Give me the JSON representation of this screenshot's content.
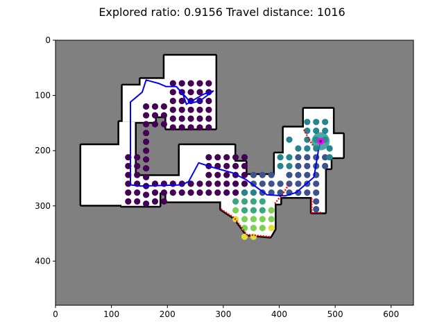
{
  "chart_data": {
    "type": "scatter",
    "title": "Explored ratio: 0.9156  Travel distance: 1016",
    "xlabel": "",
    "ylabel": "",
    "xlim": [
      0,
      640
    ],
    "ylim": [
      480,
      0
    ],
    "x_ticks": [
      0,
      100,
      200,
      300,
      400,
      500,
      600
    ],
    "y_ticks": [
      0,
      100,
      200,
      300,
      400
    ],
    "grid": false,
    "colors": {
      "unknown": "#808080",
      "free": "#ffffff",
      "wall": "#000000",
      "path": "#0000ff",
      "frontier": "#ff0000",
      "robot": "#ff00ff",
      "robot_halo": "#21918c"
    },
    "colormap": "viridis",
    "free_regions": [
      [
        [
          200,
          30
        ],
        [
          262,
          30
        ],
        [
          262,
          70
        ],
        [
          160,
          70
        ],
        [
          160,
          82
        ]
      ],
      [
        [
          110,
          82
        ],
        [
          262,
          82
        ],
        [
          262,
          134
        ],
        [
          200,
          134
        ],
        [
          200,
          82
        ]
      ],
      [
        [
          60,
          190
        ],
        [
          110,
          190
        ],
        [
          110,
          246
        ],
        [
          222,
          246
        ],
        [
          222,
          290
        ],
        [
          60,
          290
        ]
      ],
      [
        [
          110,
          82
        ],
        [
          140,
          82
        ],
        [
          140,
          290
        ],
        [
          110,
          290
        ]
      ],
      [
        [
          110,
          246
        ],
        [
          240,
          246
        ],
        [
          240,
          290
        ],
        [
          110,
          290
        ]
      ],
      [
        [
          222,
          190
        ],
        [
          340,
          190
        ],
        [
          340,
          244
        ],
        [
          390,
          244
        ],
        [
          390,
          290
        ],
        [
          222,
          290
        ]
      ],
      [
        [
          390,
          200
        ],
        [
          480,
          200
        ],
        [
          480,
          290
        ],
        [
          390,
          290
        ]
      ],
      [
        [
          410,
          126
        ],
        [
          510,
          126
        ],
        [
          510,
          300
        ],
        [
          410,
          300
        ]
      ]
    ],
    "free_polygons": [
      [
        [
          195,
          28
        ],
        [
          286,
          28
        ],
        [
          286,
          160
        ],
        [
          198,
          160
        ],
        [
          198,
          138
        ],
        [
          178,
          138
        ],
        [
          178,
          148
        ],
        [
          120,
          148
        ],
        [
          120,
          82
        ],
        [
          152,
          82
        ],
        [
          152,
          70
        ],
        [
          195,
          70
        ]
      ],
      [
        [
          46,
          190
        ],
        [
          114,
          190
        ],
        [
          114,
          148
        ],
        [
          142,
          148
        ],
        [
          142,
          246
        ],
        [
          222,
          246
        ],
        [
          222,
          190
        ],
        [
          320,
          190
        ],
        [
          320,
          220
        ],
        [
          340,
          220
        ],
        [
          340,
          244
        ],
        [
          392,
          244
        ],
        [
          392,
          205
        ],
        [
          408,
          205
        ],
        [
          408,
          158
        ],
        [
          444,
          158
        ],
        [
          444,
          124
        ],
        [
          496,
          124
        ],
        [
          496,
          170
        ],
        [
          514,
          170
        ],
        [
          514,
          212
        ],
        [
          492,
          212
        ],
        [
          492,
          232
        ],
        [
          482,
          232
        ],
        [
          482,
          312
        ],
        [
          458,
          312
        ],
        [
          458,
          284
        ],
        [
          402,
          284
        ],
        [
          402,
          296
        ],
        [
          392,
          296
        ],
        [
          392,
          342
        ],
        [
          384,
          356
        ],
        [
          342,
          352
        ],
        [
          320,
          322
        ],
        [
          296,
          306
        ],
        [
          296,
          292
        ],
        [
          198,
          292
        ],
        [
          198,
          276
        ],
        [
          186,
          276
        ],
        [
          186,
          300
        ],
        [
          118,
          300
        ],
        [
          118,
          298
        ],
        [
          46,
          298
        ]
      ]
    ],
    "series": [
      {
        "points": [
          [
            210,
            78
          ],
          [
            226,
            78
          ],
          [
            242,
            78
          ],
          [
            258,
            78
          ],
          [
            274,
            78
          ],
          [
            210,
            94
          ],
          [
            226,
            94
          ],
          [
            242,
            94
          ],
          [
            258,
            94
          ],
          [
            274,
            94
          ],
          [
            210,
            110
          ],
          [
            226,
            110
          ],
          [
            242,
            110
          ],
          [
            258,
            110
          ],
          [
            274,
            110
          ],
          [
            162,
            120
          ],
          [
            178,
            120
          ],
          [
            194,
            120
          ],
          [
            210,
            126
          ],
          [
            226,
            126
          ],
          [
            242,
            126
          ],
          [
            258,
            126
          ],
          [
            274,
            126
          ],
          [
            162,
            136
          ],
          [
            178,
            136
          ],
          [
            194,
            136
          ],
          [
            210,
            142
          ],
          [
            226,
            142
          ],
          [
            242,
            142
          ],
          [
            258,
            142
          ],
          [
            274,
            142
          ],
          [
            210,
            158
          ],
          [
            226,
            158
          ],
          [
            242,
            158
          ],
          [
            258,
            158
          ],
          [
            274,
            158
          ],
          [
            162,
            152
          ],
          [
            178,
            152
          ],
          [
            194,
            152
          ],
          [
            162,
            168
          ],
          [
            162,
            184
          ],
          [
            162,
            200
          ],
          [
            162,
            216
          ],
          [
            162,
            232
          ],
          [
            162,
            248
          ],
          [
            162,
            264
          ],
          [
            162,
            280
          ],
          [
            162,
            296
          ],
          [
            130,
            212
          ],
          [
            146,
            212
          ],
          [
            130,
            228
          ],
          [
            146,
            228
          ],
          [
            130,
            244
          ],
          [
            146,
            244
          ],
          [
            130,
            260
          ],
          [
            146,
            260
          ],
          [
            130,
            276
          ],
          [
            146,
            276
          ],
          [
            130,
            292
          ],
          [
            146,
            292
          ],
          [
            178,
            260
          ],
          [
            194,
            260
          ],
          [
            210,
            260
          ],
          [
            226,
            260
          ],
          [
            242,
            260
          ],
          [
            258,
            260
          ],
          [
            178,
            276
          ],
          [
            194,
            276
          ],
          [
            210,
            276
          ],
          [
            226,
            276
          ],
          [
            242,
            276
          ],
          [
            258,
            276
          ],
          [
            274,
            212
          ],
          [
            290,
            212
          ],
          [
            306,
            212
          ],
          [
            322,
            212
          ],
          [
            338,
            212
          ],
          [
            274,
            228
          ],
          [
            290,
            228
          ],
          [
            306,
            228
          ],
          [
            322,
            228
          ],
          [
            338,
            228
          ],
          [
            274,
            244
          ],
          [
            290,
            244
          ],
          [
            306,
            244
          ],
          [
            322,
            244
          ],
          [
            338,
            244
          ],
          [
            274,
            260
          ],
          [
            290,
            260
          ],
          [
            306,
            260
          ],
          [
            322,
            260
          ],
          [
            338,
            260
          ],
          [
            274,
            276
          ],
          [
            290,
            276
          ],
          [
            306,
            276
          ],
          [
            322,
            276
          ],
          [
            338,
            276
          ],
          [
            178,
            292
          ],
          [
            194,
            292
          ]
        ],
        "level": 0.0
      },
      {
        "points": [
          [
            354,
            260
          ],
          [
            370,
            260
          ],
          [
            386,
            260
          ],
          [
            402,
            260
          ],
          [
            354,
            244
          ],
          [
            370,
            244
          ],
          [
            386,
            244
          ],
          [
            434,
            212
          ],
          [
            450,
            212
          ],
          [
            466,
            212
          ],
          [
            482,
            212
          ],
          [
            434,
            228
          ],
          [
            450,
            228
          ],
          [
            466,
            228
          ],
          [
            482,
            228
          ],
          [
            418,
            244
          ],
          [
            434,
            244
          ],
          [
            450,
            244
          ],
          [
            466,
            244
          ],
          [
            418,
            260
          ],
          [
            434,
            260
          ],
          [
            450,
            260
          ],
          [
            466,
            260
          ],
          [
            418,
            276
          ],
          [
            434,
            276
          ],
          [
            450,
            276
          ],
          [
            466,
            276
          ],
          [
            402,
            276
          ],
          [
            386,
            276
          ],
          [
            370,
            276
          ],
          [
            466,
            292
          ],
          [
            466,
            306
          ]
        ],
        "level": 0.25
      },
      {
        "points": [
          [
            434,
            196
          ],
          [
            450,
            196
          ],
          [
            466,
            196
          ],
          [
            418,
            180
          ],
          [
            450,
            180
          ],
          [
            466,
            180
          ],
          [
            482,
            180
          ],
          [
            450,
            164
          ],
          [
            466,
            164
          ],
          [
            482,
            164
          ],
          [
            482,
            148
          ],
          [
            466,
            148
          ],
          [
            450,
            148
          ],
          [
            490,
            196
          ],
          [
            490,
            212
          ],
          [
            402,
            228
          ],
          [
            418,
            228
          ],
          [
            418,
            212
          ],
          [
            402,
            212
          ],
          [
            338,
            276
          ],
          [
            354,
            276
          ]
        ],
        "level": 0.45
      },
      {
        "points": [
          [
            322,
            292
          ],
          [
            338,
            292
          ],
          [
            354,
            292
          ],
          [
            370,
            292
          ],
          [
            338,
            308
          ],
          [
            354,
            308
          ],
          [
            370,
            308
          ]
        ],
        "level": 0.6
      },
      {
        "points": [
          [
            322,
            308
          ],
          [
            338,
            324
          ],
          [
            354,
            324
          ],
          [
            370,
            324
          ],
          [
            338,
            340
          ],
          [
            354,
            340
          ],
          [
            370,
            340
          ],
          [
            386,
            308
          ],
          [
            386,
            324
          ]
        ],
        "level": 0.8
      },
      {
        "points": [
          [
            322,
            324
          ],
          [
            354,
            356
          ],
          [
            338,
            356
          ],
          [
            386,
            340
          ]
        ],
        "level": 0.95
      }
    ],
    "path": [
      [
        474,
        183
      ],
      [
        470,
        200
      ],
      [
        462,
        248
      ],
      [
        430,
        276
      ],
      [
        410,
        282
      ],
      [
        378,
        280
      ],
      [
        340,
        252
      ],
      [
        316,
        240
      ],
      [
        280,
        230
      ],
      [
        256,
        222
      ],
      [
        238,
        256
      ],
      [
        226,
        262
      ],
      [
        152,
        264
      ],
      [
        134,
        262
      ],
      [
        134,
        112
      ],
      [
        155,
        94
      ],
      [
        162,
        72
      ],
      [
        184,
        78
      ],
      [
        198,
        84
      ],
      [
        216,
        84
      ],
      [
        228,
        98
      ],
      [
        234,
        116
      ],
      [
        264,
        98
      ],
      [
        282,
        92
      ],
      [
        258,
        110
      ],
      [
        242,
        114
      ],
      [
        234,
        104
      ],
      [
        216,
        84
      ],
      [
        196,
        84
      ]
    ],
    "frontier_segments": [
      [
        [
          296,
          306
        ],
        [
          320,
          322
        ],
        [
          342,
          352
        ],
        [
          384,
          356
        ]
      ],
      [
        [
          392,
          296
        ],
        [
          408,
          276
        ],
        [
          418,
          260
        ]
      ],
      [
        [
          444,
          162
        ],
        [
          458,
          188
        ],
        [
          470,
          198
        ]
      ],
      [
        [
          458,
          286
        ],
        [
          458,
          312
        ],
        [
          476,
          312
        ]
      ]
    ],
    "robot": [
      474,
      183
    ]
  }
}
